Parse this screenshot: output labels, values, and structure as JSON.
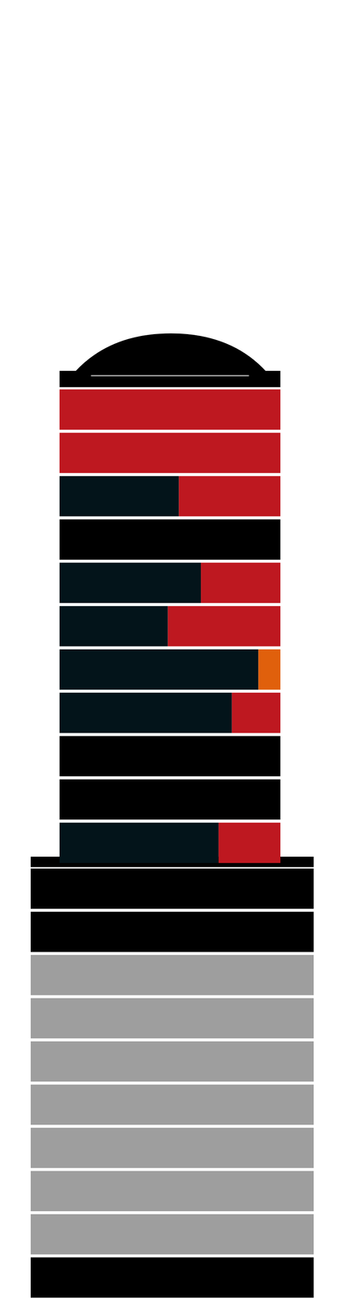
{
  "chart_data": [
    {
      "type": "bar",
      "orientation": "horizontal",
      "stacked": true,
      "grid": false,
      "tick_labels": false,
      "categories": [
        null,
        null,
        null,
        null,
        null,
        null,
        null,
        null,
        null,
        null,
        null
      ],
      "xlim": [
        0,
        100
      ],
      "series": [
        {
          "color": "#03141a",
          "values": [
            0,
            0,
            54,
            0,
            64,
            49,
            90,
            78,
            0,
            0,
            72
          ]
        },
        {
          "colors": [
            "#be1820",
            "#be1820",
            "#be1820",
            "#000000",
            "#be1820",
            "#be1820",
            "#e0600c",
            "#be1820",
            "#000000",
            "#000000",
            "#be1820"
          ],
          "values": [
            100,
            100,
            46,
            100,
            36,
            51,
            10,
            22,
            100,
            100,
            28
          ]
        }
      ]
    },
    {
      "type": "bar",
      "orientation": "horizontal",
      "stacked": true,
      "grid": false,
      "tick_labels": false,
      "categories": [
        null,
        null,
        null,
        null,
        null,
        null,
        null,
        null,
        null,
        null
      ],
      "xlim": [
        0,
        100
      ],
      "series": [
        {
          "colors": [
            "#000000",
            "#000000",
            "#9e9e9e",
            "#9e9e9e",
            "#9e9e9e",
            "#9e9e9e",
            "#9e9e9e",
            "#9e9e9e",
            "#9e9e9e",
            "#000000"
          ],
          "values": [
            100,
            100,
            100,
            100,
            100,
            100,
            100,
            100,
            100,
            100
          ]
        }
      ]
    }
  ]
}
